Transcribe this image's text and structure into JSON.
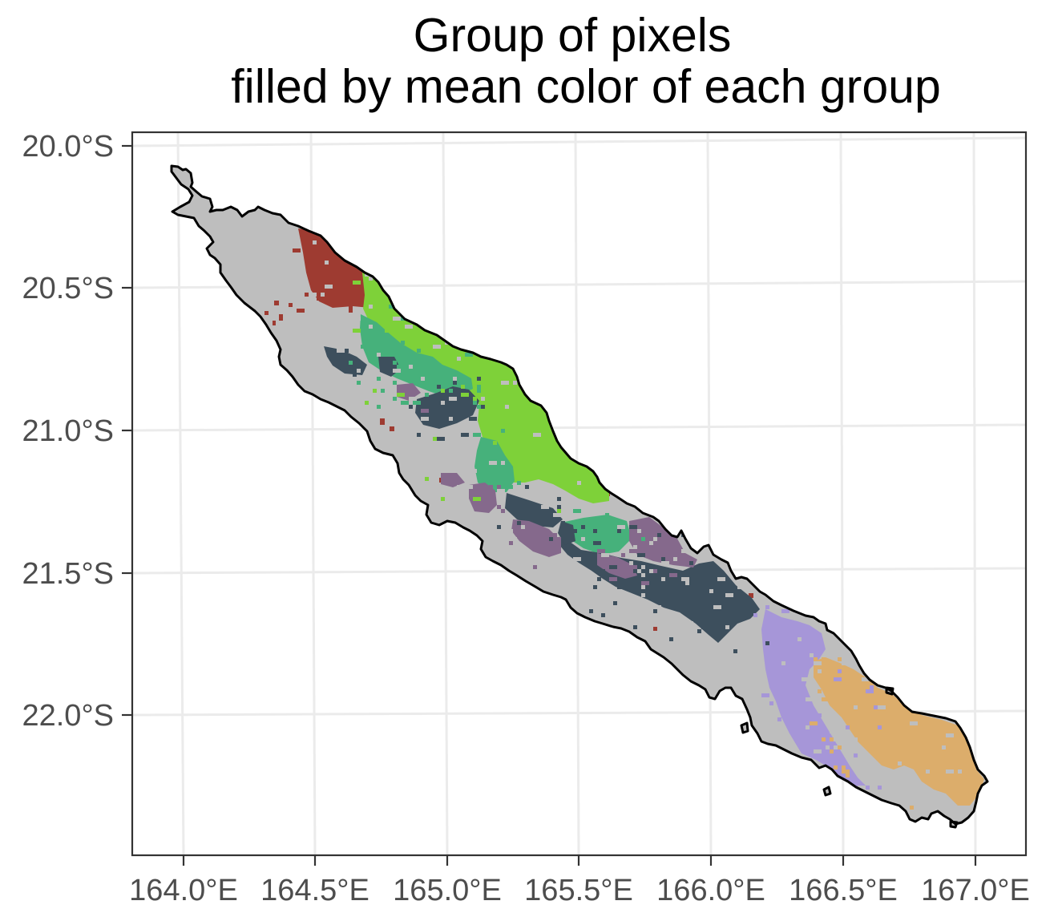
{
  "title": {
    "line1": "Group of pixels",
    "line2": "filled by mean color of each group"
  },
  "map": {
    "type": "map",
    "x_axis": {
      "ticks": [
        "164.0°E",
        "164.5°E",
        "165.0°E",
        "165.5°E",
        "166.0°E",
        "166.5°E",
        "167.0°E"
      ],
      "xlim": [
        163.8,
        167.2
      ]
    },
    "y_axis": {
      "ticks": [
        "20.0°S",
        "20.5°S",
        "21.0°S",
        "21.5°S",
        "22.0°S"
      ],
      "ylim": [
        -22.5,
        -19.95
      ]
    },
    "grid": true,
    "land_color": "#bebebe",
    "coastline_color": "#000000",
    "group_colors": [
      "#9e3b31",
      "#7ed139",
      "#46b17b",
      "#3d4f5d",
      "#85698c",
      "#a696d8",
      "#dcad6b"
    ]
  }
}
